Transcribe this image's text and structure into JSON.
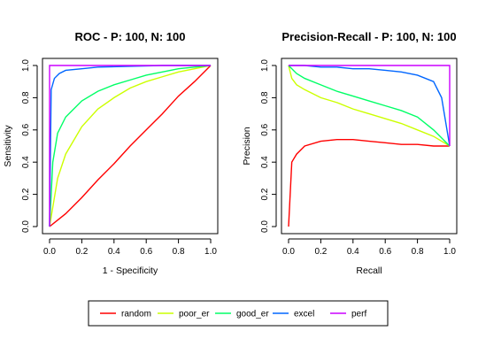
{
  "legend": {
    "items": [
      {
        "name": "random",
        "color": "#ff0000"
      },
      {
        "name": "poor_er",
        "color": "#ccff00"
      },
      {
        "name": "good_er",
        "color": "#00ff66"
      },
      {
        "name": "excel",
        "color": "#0066ff"
      },
      {
        "name": "perf",
        "color": "#cc00ff"
      }
    ],
    "placement": "bottom-center"
  },
  "chart_data": [
    {
      "type": "line",
      "title": "ROC - P: 100, N: 100",
      "xlabel": "1 - Specificity",
      "ylabel": "Sensitivity",
      "xlim": [
        0,
        1
      ],
      "ylim": [
        0,
        1
      ],
      "xticks": [
        "0.0",
        "0.2",
        "0.4",
        "0.6",
        "0.8",
        "1.0"
      ],
      "yticks": [
        "0.0",
        "0.2",
        "0.4",
        "0.6",
        "0.8",
        "1.0"
      ],
      "grid": false,
      "series": [
        {
          "name": "random",
          "color": "#ff0000",
          "x": [
            0,
            0.1,
            0.2,
            0.3,
            0.4,
            0.5,
            0.6,
            0.7,
            0.8,
            0.9,
            1.0
          ],
          "y": [
            0,
            0.08,
            0.18,
            0.29,
            0.39,
            0.5,
            0.6,
            0.7,
            0.81,
            0.9,
            1.0
          ]
        },
        {
          "name": "poor_er",
          "color": "#ccff00",
          "x": [
            0,
            0.05,
            0.1,
            0.2,
            0.3,
            0.4,
            0.5,
            0.6,
            0.7,
            0.8,
            0.9,
            1.0
          ],
          "y": [
            0,
            0.3,
            0.45,
            0.62,
            0.73,
            0.8,
            0.86,
            0.9,
            0.93,
            0.96,
            0.98,
            1.0
          ]
        },
        {
          "name": "good_er",
          "color": "#00ff66",
          "x": [
            0,
            0.02,
            0.05,
            0.1,
            0.2,
            0.3,
            0.4,
            0.5,
            0.6,
            0.7,
            0.8,
            0.9,
            1.0
          ],
          "y": [
            0,
            0.4,
            0.58,
            0.68,
            0.78,
            0.84,
            0.88,
            0.91,
            0.94,
            0.96,
            0.98,
            0.99,
            1.0
          ]
        },
        {
          "name": "excel",
          "color": "#0066ff",
          "x": [
            0,
            0.01,
            0.03,
            0.06,
            0.1,
            0.2,
            0.3,
            0.5,
            0.7,
            0.9,
            1.0
          ],
          "y": [
            0,
            0.85,
            0.92,
            0.95,
            0.97,
            0.98,
            0.99,
            0.995,
            1.0,
            1.0,
            1.0
          ]
        },
        {
          "name": "perf",
          "color": "#cc00ff",
          "x": [
            0,
            0,
            1
          ],
          "y": [
            0,
            1,
            1
          ]
        }
      ]
    },
    {
      "type": "line",
      "title": "Precision-Recall - P: 100, N: 100",
      "xlabel": "Recall",
      "ylabel": "Precision",
      "xlim": [
        0,
        1
      ],
      "ylim": [
        0,
        1
      ],
      "xticks": [
        "0.0",
        "0.2",
        "0.4",
        "0.6",
        "0.8",
        "1.0"
      ],
      "yticks": [
        "0.0",
        "0.2",
        "0.4",
        "0.6",
        "0.8",
        "1.0"
      ],
      "grid": false,
      "series": [
        {
          "name": "random",
          "color": "#ff0000",
          "x": [
            0,
            0.02,
            0.05,
            0.1,
            0.2,
            0.3,
            0.4,
            0.5,
            0.6,
            0.7,
            0.8,
            0.9,
            1.0
          ],
          "y": [
            0,
            0.4,
            0.45,
            0.5,
            0.53,
            0.54,
            0.54,
            0.53,
            0.52,
            0.51,
            0.51,
            0.5,
            0.5
          ]
        },
        {
          "name": "poor_er",
          "color": "#ccff00",
          "x": [
            0,
            0.02,
            0.05,
            0.1,
            0.2,
            0.3,
            0.4,
            0.5,
            0.6,
            0.7,
            0.8,
            0.9,
            1.0
          ],
          "y": [
            1.0,
            0.92,
            0.88,
            0.85,
            0.8,
            0.77,
            0.73,
            0.7,
            0.67,
            0.64,
            0.6,
            0.56,
            0.5
          ]
        },
        {
          "name": "good_er",
          "color": "#00ff66",
          "x": [
            0,
            0.05,
            0.1,
            0.2,
            0.3,
            0.4,
            0.5,
            0.6,
            0.7,
            0.8,
            0.9,
            1.0
          ],
          "y": [
            1.0,
            0.95,
            0.92,
            0.88,
            0.84,
            0.81,
            0.78,
            0.75,
            0.72,
            0.68,
            0.6,
            0.5
          ]
        },
        {
          "name": "excel",
          "color": "#0066ff",
          "x": [
            0,
            0.1,
            0.2,
            0.3,
            0.4,
            0.5,
            0.6,
            0.7,
            0.8,
            0.9,
            0.95,
            1.0
          ],
          "y": [
            1.0,
            1.0,
            0.99,
            0.99,
            0.98,
            0.98,
            0.97,
            0.96,
            0.94,
            0.9,
            0.8,
            0.5
          ]
        },
        {
          "name": "perf",
          "color": "#cc00ff",
          "x": [
            0,
            1,
            1
          ],
          "y": [
            1,
            1,
            0.5
          ]
        }
      ]
    }
  ]
}
